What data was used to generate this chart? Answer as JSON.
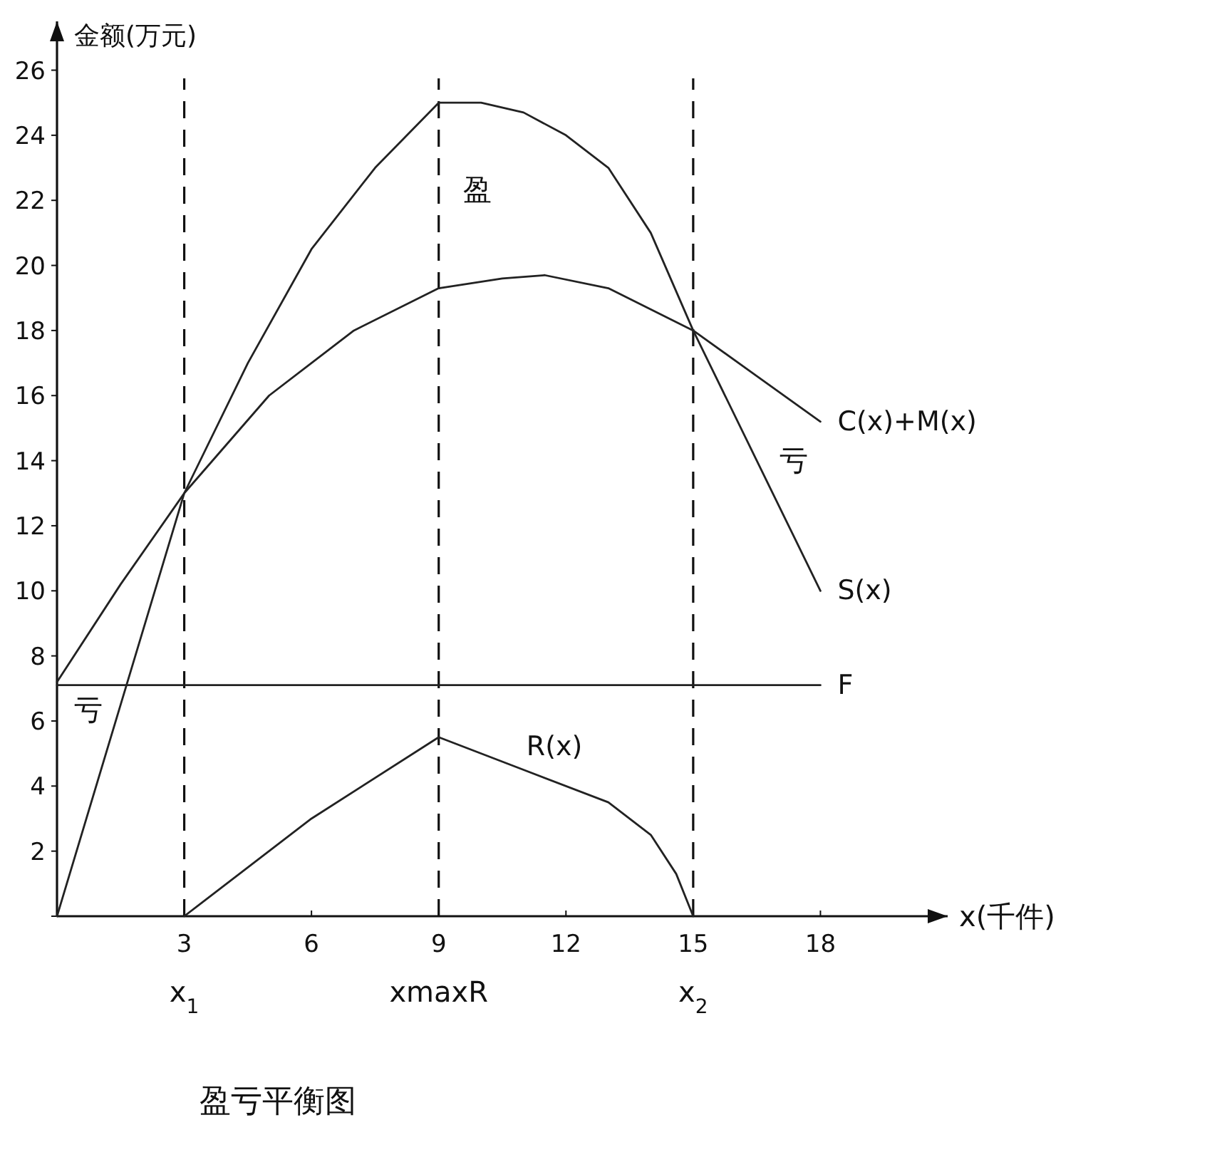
{
  "chart_data": {
    "type": "line",
    "title": "盈亏平衡图",
    "xlabel": "x(千件)",
    "ylabel": "金额(万元)",
    "xlim": [
      0,
      21
    ],
    "ylim": [
      0,
      27.5
    ],
    "xticks": [
      {
        "value": 0,
        "label": null
      },
      3,
      6,
      9,
      12,
      15,
      18
    ],
    "yticks": [
      {
        "value": 0,
        "label": null
      },
      2,
      4,
      6,
      8,
      10,
      12,
      14,
      16,
      18,
      20,
      22,
      24,
      26
    ],
    "line_style": "solid",
    "series": [
      {
        "name": "S(x)",
        "color": "#222222",
        "x": [
          0,
          1.5,
          3,
          4.5,
          6,
          7.5,
          9,
          10,
          11,
          12,
          13,
          14,
          15,
          16.5,
          18
        ],
        "values": [
          0,
          6.5,
          13,
          17,
          20.5,
          23,
          25,
          25,
          24.7,
          24,
          23,
          21,
          18,
          14,
          10
        ]
      },
      {
        "name": "C(x)+M(x)",
        "color": "#222222",
        "x": [
          0,
          1.5,
          3,
          5,
          7,
          9,
          10.5,
          11.5,
          13,
          15,
          16.5,
          18
        ],
        "values": [
          7.2,
          10.2,
          13,
          16,
          18,
          19.3,
          19.6,
          19.7,
          19.3,
          18,
          16.6,
          15.2
        ]
      },
      {
        "name": "F",
        "color": "#222222",
        "x": [
          0,
          18
        ],
        "values": [
          7.1,
          7.1
        ]
      },
      {
        "name": "R(x)",
        "color": "#222222",
        "x": [
          3,
          6,
          9,
          11,
          13,
          14,
          14.6,
          15
        ],
        "values": [
          0,
          3,
          5.5,
          4.5,
          3.5,
          2.5,
          1.3,
          0
        ]
      }
    ],
    "ref_lines": [
      {
        "axis": "x",
        "value": 3,
        "label": "x$_{1}$",
        "line_style": "dashed"
      },
      {
        "axis": "x",
        "value": 9,
        "label": "xmaxR",
        "line_style": "dashed"
      },
      {
        "axis": "x",
        "value": 15,
        "label": "x$_{2}$",
        "line_style": "dashed"
      }
    ],
    "annotations": [
      "盈",
      "亏",
      "亏"
    ]
  }
}
